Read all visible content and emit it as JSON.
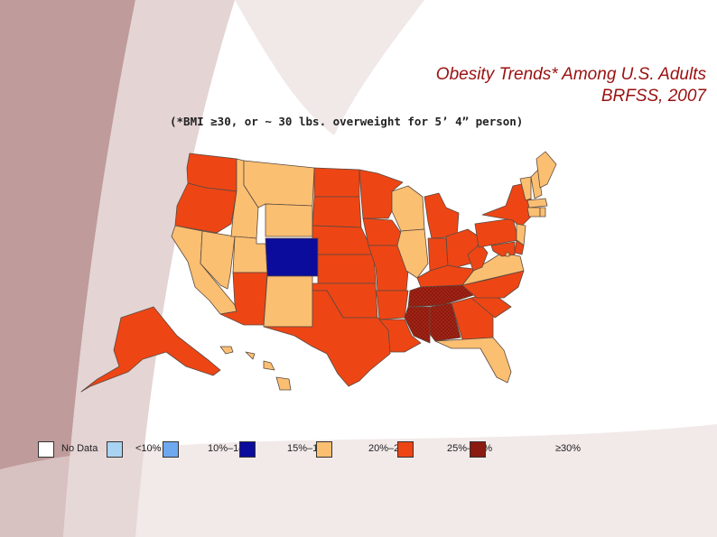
{
  "title": {
    "line1": "Obesity Trends* Among U.S. Adults",
    "line2": "BRFSS, 2007",
    "color": "#9a1010"
  },
  "subtitle": "(*BMI ≥30, or ~ 30 lbs. overweight for 5’ 4” person)",
  "legend": [
    {
      "label": "No Data",
      "color": "#ffffff"
    },
    {
      "label": "<10%",
      "color": "#a9d3f2"
    },
    {
      "label": "10%–14%",
      "color": "#6ea8ee"
    },
    {
      "label": "15%–19%",
      "color": "#0b0b9c"
    },
    {
      "label": "20%–24%",
      "color": "#fbbf72"
    },
    {
      "label": "25%–29%",
      "color": "#ee4515"
    },
    {
      "label": "≥30%",
      "color": "#8b1a10"
    }
  ],
  "map": {
    "colors": {
      "range_15_19": "#0b0b9c",
      "range_20_24": "#fbbf72",
      "range_25_29": "#ee4515",
      "range_30_plus": "#8b1a10",
      "border": "#5a4a40",
      "background_swash": "#b48a8a"
    },
    "states": [
      {
        "id": "WA",
        "range": "25-29"
      },
      {
        "id": "OR",
        "range": "25-29"
      },
      {
        "id": "CA",
        "range": "20-24"
      },
      {
        "id": "NV",
        "range": "20-24"
      },
      {
        "id": "ID",
        "range": "20-24"
      },
      {
        "id": "MT",
        "range": "20-24"
      },
      {
        "id": "WY",
        "range": "20-24"
      },
      {
        "id": "UT",
        "range": "20-24"
      },
      {
        "id": "AZ",
        "range": "25-29"
      },
      {
        "id": "CO",
        "range": "15-19"
      },
      {
        "id": "NM",
        "range": "20-24"
      },
      {
        "id": "ND",
        "range": "25-29"
      },
      {
        "id": "SD",
        "range": "25-29"
      },
      {
        "id": "NE",
        "range": "25-29"
      },
      {
        "id": "KS",
        "range": "25-29"
      },
      {
        "id": "OK",
        "range": "25-29"
      },
      {
        "id": "TX",
        "range": "25-29"
      },
      {
        "id": "MN",
        "range": "25-29"
      },
      {
        "id": "IA",
        "range": "25-29"
      },
      {
        "id": "MO",
        "range": "25-29"
      },
      {
        "id": "AR",
        "range": "25-29"
      },
      {
        "id": "LA",
        "range": "25-29"
      },
      {
        "id": "WI",
        "range": "20-24"
      },
      {
        "id": "IL",
        "range": "20-24"
      },
      {
        "id": "MI",
        "range": "25-29"
      },
      {
        "id": "IN",
        "range": "25-29"
      },
      {
        "id": "OH",
        "range": "25-29"
      },
      {
        "id": "KY",
        "range": "25-29"
      },
      {
        "id": "TN",
        "range": "30+"
      },
      {
        "id": "MS",
        "range": "30+"
      },
      {
        "id": "AL",
        "range": "30+"
      },
      {
        "id": "GA",
        "range": "25-29"
      },
      {
        "id": "FL",
        "range": "20-24"
      },
      {
        "id": "SC",
        "range": "25-29"
      },
      {
        "id": "NC",
        "range": "25-29"
      },
      {
        "id": "VA",
        "range": "20-24"
      },
      {
        "id": "WV",
        "range": "25-29"
      },
      {
        "id": "PA",
        "range": "25-29"
      },
      {
        "id": "NY",
        "range": "25-29"
      },
      {
        "id": "VT",
        "range": "20-24"
      },
      {
        "id": "NH",
        "range": "20-24"
      },
      {
        "id": "ME",
        "range": "20-24"
      },
      {
        "id": "MA",
        "range": "20-24"
      },
      {
        "id": "CT",
        "range": "20-24"
      },
      {
        "id": "RI",
        "range": "20-24"
      },
      {
        "id": "NJ",
        "range": "20-24"
      },
      {
        "id": "DE",
        "range": "25-29"
      },
      {
        "id": "MD",
        "range": "25-29"
      },
      {
        "id": "DC",
        "range": "20-24"
      },
      {
        "id": "AK",
        "range": "25-29"
      },
      {
        "id": "HI",
        "range": "20-24"
      }
    ]
  }
}
